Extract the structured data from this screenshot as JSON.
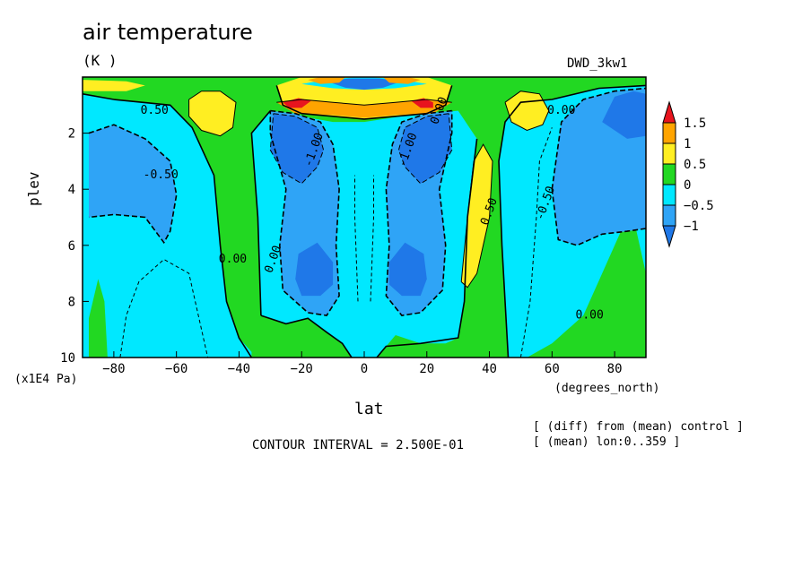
{
  "title": "air temperature",
  "units": "(K )",
  "dataset": "DWD_3kw1",
  "notes": [
    "[ (diff) from (mean) control ]",
    "[ (mean) lon:0..359 ]"
  ],
  "contour_interval": "CONTOUR INTERVAL = 2.500E-01",
  "colors": {
    "c_lt_neg1": "#1f78e8",
    "c_neg1_neg05": "#2fa4f6",
    "c_neg05_0": "#00e8ff",
    "c_0_05": "#22d822",
    "c_05_1": "#ffee22",
    "c_1_15": "#ffa400",
    "c_gt_15": "#e8141e"
  },
  "chart_data": {
    "type": "contour",
    "title": "air temperature",
    "units": "(K )",
    "xlabel": "lat",
    "xunits": "(degrees_north)",
    "ylabel": "plev",
    "yunits": "(x1E4 Pa)",
    "xlim": [
      -90,
      90
    ],
    "ylim": [
      0,
      10
    ],
    "y_inverted": true,
    "xticks": [
      -80,
      -60,
      -40,
      -20,
      0,
      20,
      40,
      60,
      80
    ],
    "yticks": [
      2,
      4,
      6,
      8,
      10
    ],
    "colorbar": {
      "levels": [
        "1.5",
        "1",
        "0.5",
        "0",
        "-0.5",
        "-1"
      ],
      "extends": "both"
    },
    "contour_labels": [
      {
        "text": "0.50",
        "lat": -67,
        "plev": 1.2
      },
      {
        "text": "-0.50",
        "lat": -65,
        "plev": 3.5
      },
      {
        "text": "0.00",
        "lat": -42,
        "plev": 6.5
      },
      {
        "text": "0.00",
        "lat": -29,
        "plev": 6.5
      },
      {
        "text": "-1.00",
        "lat": -16,
        "plev": 2.6
      },
      {
        "text": "-1.00",
        "lat": 14,
        "plev": 2.6
      },
      {
        "text": "0.00",
        "lat": 24,
        "plev": 1.2
      },
      {
        "text": "0.50",
        "lat": 40,
        "plev": 4.8
      },
      {
        "text": "0.00",
        "lat": 63,
        "plev": 1.2
      },
      {
        "text": "-0.50",
        "lat": 58,
        "plev": 4.5
      },
      {
        "text": "0.00",
        "lat": 72,
        "plev": 8.5
      }
    ],
    "features": [
      {
        "desc": "negative anomaly core",
        "lat": -15,
        "plev": 7.0,
        "value": "-1"
      },
      {
        "desc": "negative anomaly core",
        "lat": 15,
        "plev": 7.0,
        "value": "-1"
      },
      {
        "desc": "negative anomaly core",
        "lat": -20,
        "plev": 2.3,
        "value": "-1"
      },
      {
        "desc": "negative anomaly core",
        "lat": 18,
        "plev": 2.3,
        "value": "-1"
      },
      {
        "desc": "positive anomaly band",
        "lat": 38,
        "plev": 5.5,
        "value": "0.5"
      },
      {
        "desc": "positive anomaly",
        "lat": -49,
        "plev": 1.2,
        "value": "0.5"
      },
      {
        "desc": "positive anomaly",
        "lat": 52,
        "plev": 1.2,
        "value": "0.5"
      },
      {
        "desc": "strong dipole near top",
        "lat": 0,
        "plev": 0.6,
        "value": "1.5"
      }
    ]
  }
}
